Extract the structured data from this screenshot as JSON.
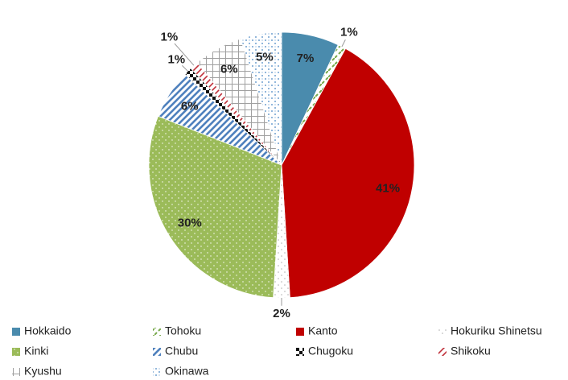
{
  "chart_data": {
    "type": "pie",
    "categories": [
      "Hokkaido",
      "Tohoku",
      "Kanto",
      "Hokuriku Shinetsu",
      "Kinki",
      "Chubu",
      "Chugoku",
      "Shikoku",
      "Kyushu",
      "Okinawa"
    ],
    "values": [
      7,
      1,
      41,
      2,
      30,
      6,
      1,
      1,
      6,
      5
    ],
    "value_labels": [
      "7%",
      "1%",
      "41%",
      "2%",
      "30%",
      "6%",
      "1%",
      "1%",
      "6%",
      "5%"
    ],
    "colors": [
      "#4a8bad",
      "#77a84a",
      "#c00000",
      "#b0b0b0",
      "#9bbb59",
      "#4f81bd",
      "#111111",
      "#c0303a",
      "#a0a0a0",
      "#6fa0d0"
    ]
  }
}
